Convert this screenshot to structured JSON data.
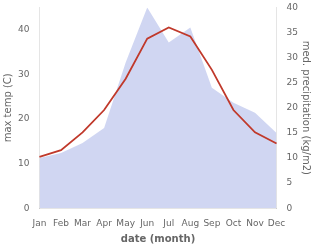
{
  "chart_data": {
    "type": "line",
    "xlabel": "date (month)",
    "ylabel": "max temp (C)",
    "y2label": "med. precipitation (kg/m2)",
    "categories": [
      "Jan",
      "Feb",
      "Mar",
      "Apr",
      "May",
      "Jun",
      "Jul",
      "Aug",
      "Sep",
      "Oct",
      "Nov",
      "Dec"
    ],
    "series": [
      {
        "type": "area",
        "axis": "y2",
        "color": "#aab4e8",
        "values": [
          10.0,
          11.0,
          13.0,
          16.0,
          29.0,
          40.0,
          33.0,
          36.0,
          24.0,
          21.0,
          19.0,
          15.0
        ]
      },
      {
        "type": "line",
        "color": "#c0392b",
        "values": [
          11.5,
          13.0,
          17.0,
          22.0,
          29.0,
          38.0,
          40.5,
          38.5,
          31.0,
          22.0,
          17.0,
          14.5
        ]
      }
    ],
    "ylim": [
      0,
      45
    ],
    "yticks": [
      0,
      10,
      20,
      30,
      40
    ],
    "y2lim": [
      0,
      40
    ],
    "y2ticks": [
      0,
      5,
      10,
      15,
      20,
      25,
      30,
      35,
      40
    ],
    "grid": false
  }
}
